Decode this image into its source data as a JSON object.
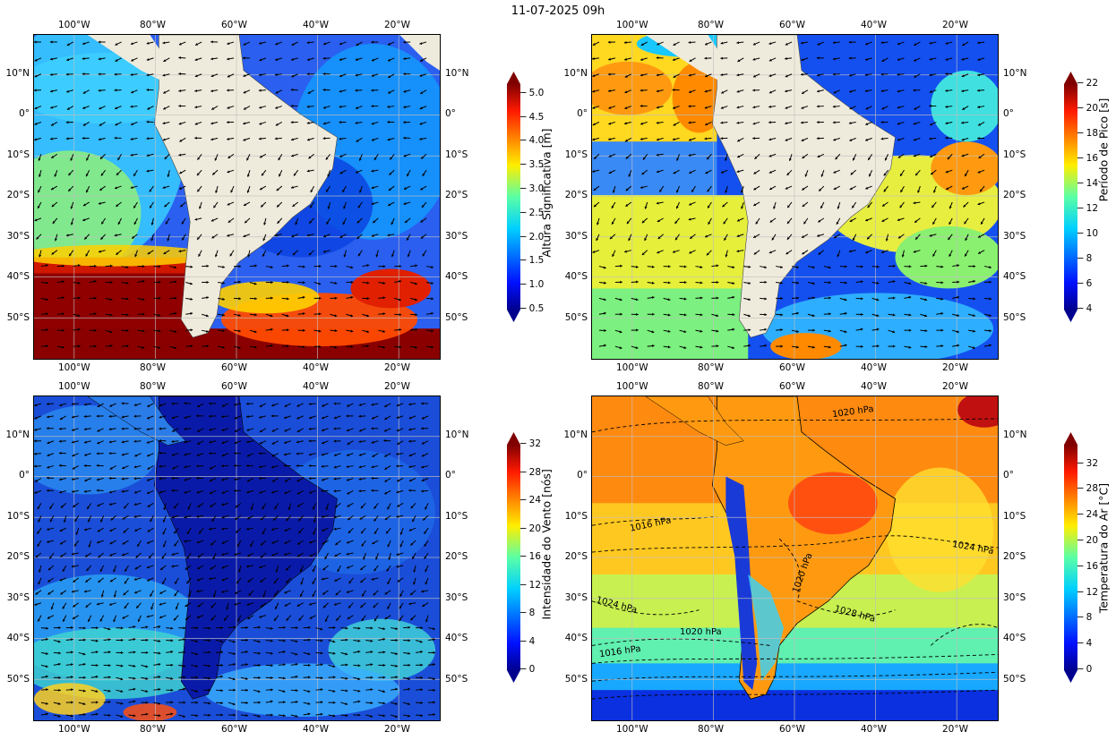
{
  "title": "11-07-2025 09h",
  "lon_ticks": [
    "100°W",
    "80°W",
    "60°W",
    "40°W",
    "20°W"
  ],
  "lat_ticks": [
    "10°N",
    "0°",
    "10°S",
    "20°S",
    "30°S",
    "40°S",
    "50°S"
  ],
  "panels": [
    {
      "id": "wave-height",
      "colorbar_label": "Altura Significativa [m]",
      "colorbar_ticks": [
        "0.5",
        "1.0",
        "1.5",
        "2.0",
        "2.5",
        "3.0",
        "3.5",
        "4.0",
        "4.5",
        "5.0"
      ],
      "colormap": "jet",
      "vectors": "wave direction",
      "land_color": "#efebdc"
    },
    {
      "id": "peak-period",
      "colorbar_label": "Período de Pico [s]",
      "colorbar_ticks": [
        "4",
        "6",
        "8",
        "10",
        "12",
        "14",
        "16",
        "18",
        "20",
        "22"
      ],
      "colormap": "jet",
      "vectors": "wave direction",
      "land_color": "#efebdc"
    },
    {
      "id": "wind-speed",
      "colorbar_label": "Intensidade do Vento [nós]",
      "colorbar_ticks": [
        "0",
        "4",
        "8",
        "12",
        "16",
        "20",
        "24",
        "28",
        "32"
      ],
      "colormap": "jet",
      "vectors": "wind direction"
    },
    {
      "id": "air-temperature",
      "colorbar_label": "Temperatura do Ar [°C]",
      "colorbar_ticks": [
        "0",
        "4",
        "8",
        "12",
        "16",
        "20",
        "24",
        "28",
        "32"
      ],
      "colormap": "jet",
      "isobar_labels": [
        "1020 hPa",
        "1016 hPa",
        "1024 hPa",
        "1020 hPa",
        "1024 hPa",
        "1028 hPa",
        "1020 hPa",
        "1016 hPa"
      ]
    }
  ]
}
